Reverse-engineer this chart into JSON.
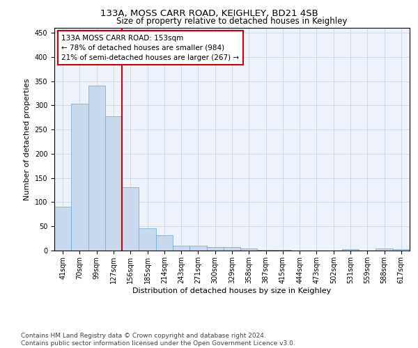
{
  "title": "133A, MOSS CARR ROAD, KEIGHLEY, BD21 4SB",
  "subtitle": "Size of property relative to detached houses in Keighley",
  "xlabel": "Distribution of detached houses by size in Keighley",
  "ylabel": "Number of detached properties",
  "bar_color": "#c8d9ee",
  "bar_edge_color": "#6aaad4",
  "categories": [
    "41sqm",
    "70sqm",
    "99sqm",
    "127sqm",
    "156sqm",
    "185sqm",
    "214sqm",
    "243sqm",
    "271sqm",
    "300sqm",
    "329sqm",
    "358sqm",
    "387sqm",
    "415sqm",
    "444sqm",
    "473sqm",
    "502sqm",
    "531sqm",
    "559sqm",
    "588sqm",
    "617sqm"
  ],
  "values": [
    91,
    303,
    340,
    277,
    131,
    46,
    31,
    10,
    10,
    7,
    7,
    4,
    2,
    1,
    0,
    0,
    0,
    3,
    0,
    4,
    3
  ],
  "ylim": [
    0,
    460
  ],
  "yticks": [
    0,
    50,
    100,
    150,
    200,
    250,
    300,
    350,
    400,
    450
  ],
  "vline_x": 3.5,
  "annotation_text": "133A MOSS CARR ROAD: 153sqm\n← 78% of detached houses are smaller (984)\n21% of semi-detached houses are larger (267) →",
  "annotation_box_color": "#ffffff",
  "annotation_box_edge": "#cc0000",
  "vline_color": "#cc0000",
  "grid_color": "#ccd6e8",
  "background_color": "#eef2fa",
  "footer": "Contains HM Land Registry data © Crown copyright and database right 2024.\nContains public sector information licensed under the Open Government Licence v3.0.",
  "title_fontsize": 9.5,
  "subtitle_fontsize": 8.5,
  "annotation_fontsize": 7.5,
  "tick_fontsize": 7,
  "ylabel_fontsize": 8,
  "xlabel_fontsize": 8,
  "footer_fontsize": 6.5
}
